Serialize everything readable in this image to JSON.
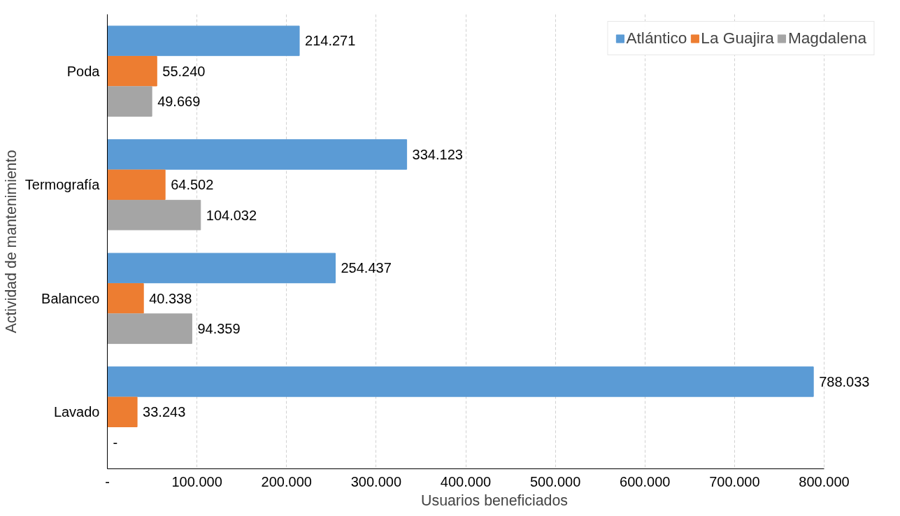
{
  "chart_data": {
    "type": "bar",
    "orientation": "horizontal",
    "xlabel": "Usuarios beneficiados",
    "ylabel": "Actividad de mantenimiento",
    "categories": [
      "Poda",
      "Termografía",
      "Balanceo",
      "Lavado"
    ],
    "series": [
      {
        "name": "Atlántico",
        "color": "#5b9bd5",
        "values": [
          214271,
          334123,
          254437,
          788033
        ],
        "value_labels": [
          "214.271",
          "334.123",
          "254.437",
          "788.033"
        ]
      },
      {
        "name": "La Guajira",
        "color": "#ed7d31",
        "values": [
          55240,
          64502,
          40338,
          33243
        ],
        "value_labels": [
          "55.240",
          "64.502",
          "40.338",
          "33.243"
        ]
      },
      {
        "name": "Magdalena",
        "color": "#a5a5a5",
        "values": [
          49669,
          104032,
          94359,
          0
        ],
        "value_labels": [
          "49.669",
          "104.032",
          "94.359",
          "-"
        ]
      }
    ],
    "xlim": [
      0,
      800000
    ],
    "xticks": [
      {
        "value": 0,
        "label": "-"
      },
      {
        "value": 100000,
        "label": "100.000"
      },
      {
        "value": 200000,
        "label": "200.000"
      },
      {
        "value": 300000,
        "label": "300.000"
      },
      {
        "value": 400000,
        "label": "400.000"
      },
      {
        "value": 500000,
        "label": "500.000"
      },
      {
        "value": 600000,
        "label": "600.000"
      },
      {
        "value": 700000,
        "label": "700.000"
      },
      {
        "value": 800000,
        "label": "800.000"
      }
    ],
    "grid": "x",
    "legend": "top right"
  }
}
